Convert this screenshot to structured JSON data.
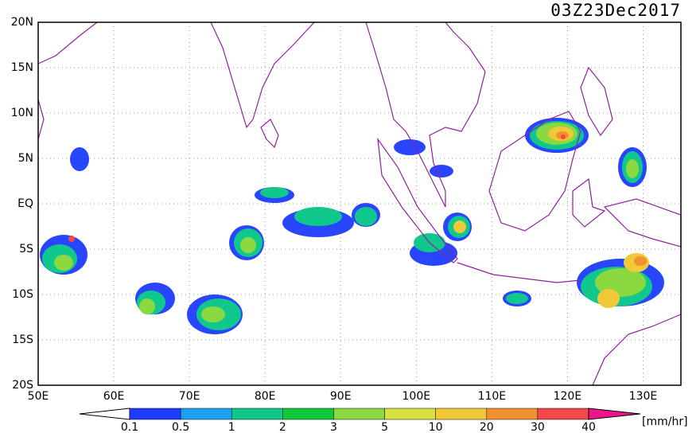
{
  "map": {
    "title": "03Z23Dec2017",
    "lonlim": [
      50,
      135
    ],
    "latlim": [
      -20,
      20
    ],
    "lonticks": [
      {
        "value": 50,
        "label": "50E"
      },
      {
        "value": 60,
        "label": "60E"
      },
      {
        "value": 70,
        "label": "70E"
      },
      {
        "value": 80,
        "label": "80E"
      },
      {
        "value": 90,
        "label": "90E"
      },
      {
        "value": 100,
        "label": "100E"
      },
      {
        "value": 110,
        "label": "110E"
      },
      {
        "value": 120,
        "label": "120E"
      },
      {
        "value": 130,
        "label": "130E"
      }
    ],
    "latticks": [
      {
        "value": 20,
        "label": "20N"
      },
      {
        "value": 15,
        "label": "15N"
      },
      {
        "value": 10,
        "label": "10N"
      },
      {
        "value": 5,
        "label": "5N"
      },
      {
        "value": 0,
        "label": "EQ"
      },
      {
        "value": -5,
        "label": "5S"
      },
      {
        "value": -10,
        "label": "10S"
      },
      {
        "value": -15,
        "label": "15S"
      },
      {
        "value": -20,
        "label": "20S"
      }
    ],
    "grid": true,
    "colorbar": {
      "levels": [
        0.1,
        0.5,
        1,
        2,
        3,
        5,
        10,
        20,
        30,
        40
      ],
      "colors": [
        "#1e3cff",
        "#1ea0f0",
        "#10c88c",
        "#10c83c",
        "#8cd840",
        "#d8e040",
        "#f0c838",
        "#f09030",
        "#f04848"
      ],
      "under_color": "#ffffff",
      "over_color": "#f0148c",
      "unit": "[mm/hr]"
    }
  }
}
